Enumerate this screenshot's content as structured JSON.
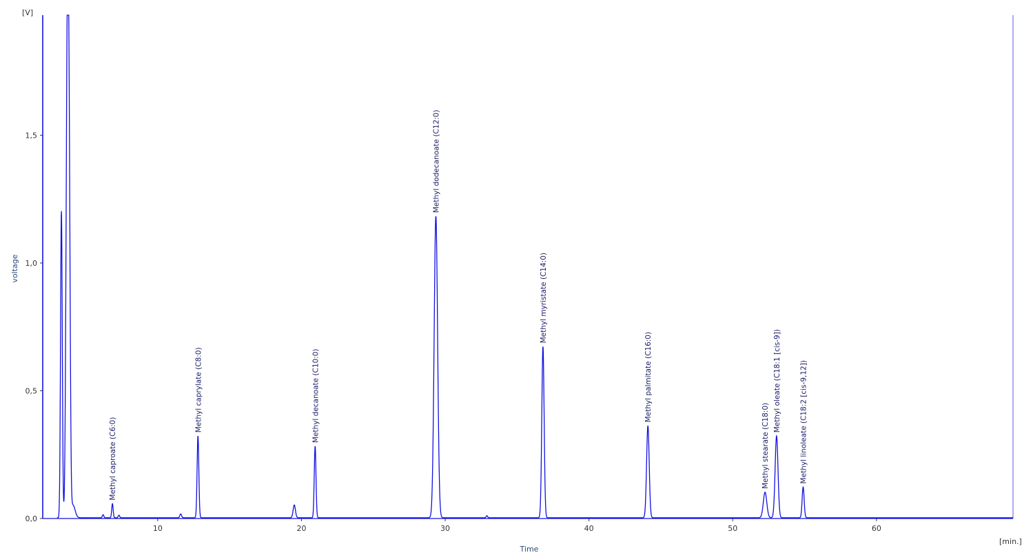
{
  "chart_data": {
    "type": "line",
    "title": "",
    "xlabel": "Time",
    "ylabel": "voltage",
    "x_unit_label": "[min.]",
    "y_unit_label": "[V]",
    "xlim": [
      2,
      69.5
    ],
    "ylim": [
      0,
      1.97
    ],
    "x_ticks": [
      {
        "value": 10,
        "label": "10"
      },
      {
        "value": 20,
        "label": "20"
      },
      {
        "value": 30,
        "label": "30"
      },
      {
        "value": 40,
        "label": "40"
      },
      {
        "value": 50,
        "label": "50"
      },
      {
        "value": 60,
        "label": "60"
      }
    ],
    "y_ticks": [
      {
        "value": 0,
        "label": "0,0"
      },
      {
        "value": 0.5,
        "label": "0,5"
      },
      {
        "value": 1.0,
        "label": "1,0"
      },
      {
        "value": 1.5,
        "label": "1,5"
      }
    ],
    "grid": false,
    "line_color": "#1010e0",
    "axis_color": "#1010e0",
    "baseline": 0.003,
    "peaks": [
      {
        "rt": 3.3,
        "height": 1.2,
        "width": 0.06,
        "label": ""
      },
      {
        "rt": 3.72,
        "height": 1.97,
        "width": 0.09,
        "label": ""
      },
      {
        "rt": 3.85,
        "height": 0.9,
        "width": 0.07,
        "label": ""
      },
      {
        "rt": 4.1,
        "height": 0.05,
        "width": 0.15,
        "label": ""
      },
      {
        "rt": 6.2,
        "height": 0.012,
        "width": 0.05,
        "label": ""
      },
      {
        "rt": 6.85,
        "height": 0.055,
        "width": 0.05,
        "label": "Methyl caproate (C6:0)"
      },
      {
        "rt": 7.3,
        "height": 0.01,
        "width": 0.05,
        "label": ""
      },
      {
        "rt": 11.6,
        "height": 0.015,
        "width": 0.06,
        "label": ""
      },
      {
        "rt": 12.8,
        "height": 0.32,
        "width": 0.06,
        "label": "Methyl caprylate (C8:0)"
      },
      {
        "rt": 19.5,
        "height": 0.05,
        "width": 0.08,
        "label": ""
      },
      {
        "rt": 20.95,
        "height": 0.28,
        "width": 0.06,
        "label": "Methyl decanoate (C10:0)"
      },
      {
        "rt": 29.35,
        "height": 1.18,
        "width": 0.12,
        "label": "Methyl dodecanoate (C12:0)"
      },
      {
        "rt": 32.9,
        "height": 0.008,
        "width": 0.05,
        "label": ""
      },
      {
        "rt": 36.8,
        "height": 0.67,
        "width": 0.08,
        "label": "Methyl myristate (C14:0)"
      },
      {
        "rt": 44.1,
        "height": 0.36,
        "width": 0.09,
        "label": "Methyl palmitate (C16:0)"
      },
      {
        "rt": 52.25,
        "height": 0.1,
        "width": 0.12,
        "label": "Methyl stearate (C18:0)"
      },
      {
        "rt": 53.05,
        "height": 0.32,
        "width": 0.1,
        "label": "Methyl oleate (C18:1 [cis-9])"
      },
      {
        "rt": 54.9,
        "height": 0.12,
        "width": 0.07,
        "label": "Methyl linoleate (C18:2 [cis-9,12])"
      }
    ]
  }
}
